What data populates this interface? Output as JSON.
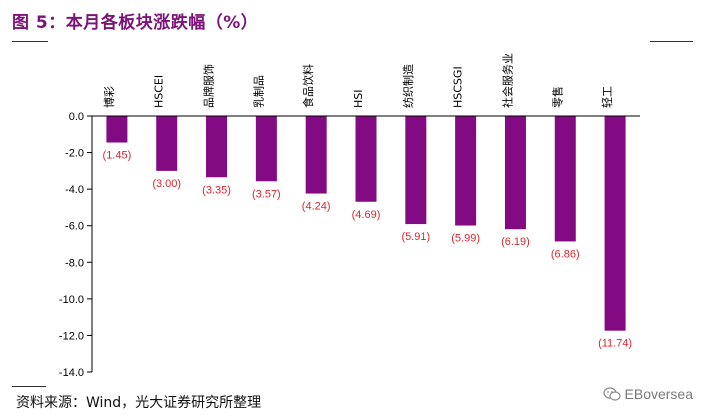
{
  "header": {
    "title": "图 5：本月各板块涨跌幅（%）"
  },
  "footer": {
    "source": "资料来源：Wind，光大证券研究所整理",
    "watermark": "EBoversea",
    "watermark_icon": "wechat-icon"
  },
  "colors": {
    "title": "#7b1379",
    "bar": "#820a82",
    "data_label": "#d9262f"
  },
  "chart_data": {
    "type": "bar",
    "title": "图 5：本月各板块涨跌幅（%）",
    "categories": [
      "博彩",
      "HSCEI",
      "品牌服饰",
      "乳制品",
      "食品饮料",
      "HSI",
      "纺织制造",
      "HSCSGI",
      "社会服务业",
      "零售",
      "轻工"
    ],
    "values": [
      -1.45,
      -3.0,
      -3.35,
      -3.57,
      -4.24,
      -4.69,
      -5.91,
      -5.99,
      -6.19,
      -6.86,
      -11.74
    ],
    "data_labels": [
      "(1.45)",
      "(3.00)",
      "(3.35)",
      "(3.57)",
      "(4.24)",
      "(4.69)",
      "(5.91)",
      "(5.99)",
      "(6.19)",
      "(6.86)",
      "(11.74)"
    ],
    "ylim": [
      -14,
      0
    ],
    "yticks": [
      0,
      -2,
      -4,
      -6,
      -8,
      -10,
      -12,
      -14
    ],
    "ytick_labels": [
      "0.0",
      "-2.0",
      "-4.0",
      "-6.0",
      "-8.0",
      "-10.0",
      "-12.0",
      "-14.0"
    ],
    "xlabel": "",
    "ylabel": "",
    "grid": false,
    "legend": "none"
  }
}
